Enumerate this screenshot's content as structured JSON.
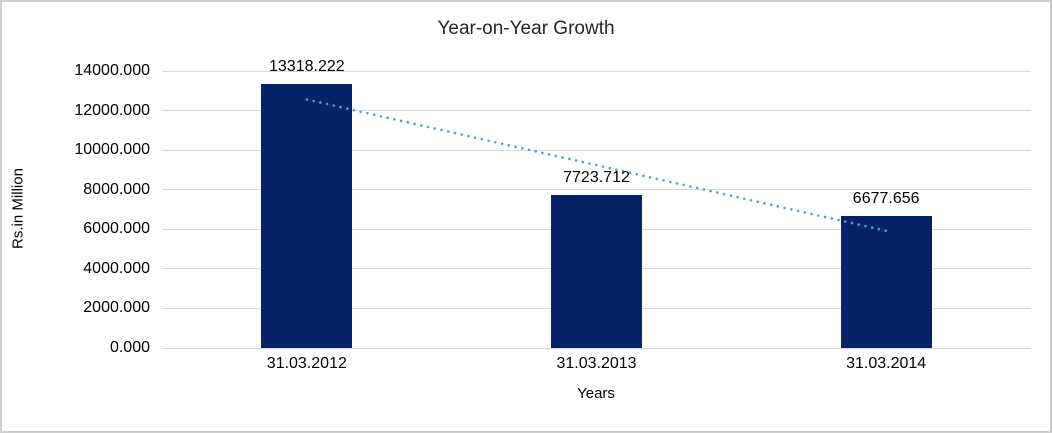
{
  "chart": {
    "title": "Year-on-Year Growth",
    "x_axis_title": "Years",
    "y_axis_title": "Rs.in Million"
  },
  "chart_data": {
    "type": "bar",
    "title": "Year-on-Year Growth",
    "xlabel": "Years",
    "ylabel": "Rs.in Million",
    "categories": [
      "31.03.2012",
      "31.03.2013",
      "31.03.2014"
    ],
    "values": [
      13318.222,
      7723.712,
      6677.656
    ],
    "data_labels": [
      "13318.222",
      "7723.712",
      "6677.656"
    ],
    "y_ticks": [
      "0.000",
      "2000.000",
      "4000.000",
      "6000.000",
      "8000.000",
      "10000.000",
      "12000.000",
      "14000.000"
    ],
    "y_tick_values": [
      0,
      2000,
      4000,
      6000,
      8000,
      10000,
      12000,
      14000
    ],
    "ylim": [
      0,
      14000
    ],
    "grid": true,
    "legend": "none",
    "bar_color": "#052366",
    "gridline_color": "#d9d9d9",
    "trendline": {
      "type": "linear",
      "style": "dotted",
      "color": "#5b9bd5",
      "fitted_values": [
        12560.15,
        9239.86,
        5919.58
      ]
    }
  }
}
